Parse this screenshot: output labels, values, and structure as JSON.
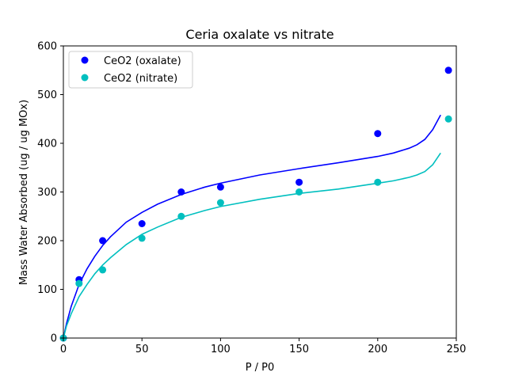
{
  "chart_data": {
    "type": "scatter",
    "title": "Ceria oxalate vs nitrate",
    "xlabel": "P / P0",
    "ylabel": "Mass Water Absorbed (ug / ug MOx)",
    "xlim": [
      0,
      250
    ],
    "ylim": [
      0,
      600
    ],
    "xticks": [
      "0",
      "50",
      "100",
      "150",
      "200",
      "250"
    ],
    "yticks": [
      "0",
      "100",
      "200",
      "300",
      "400",
      "500",
      "600"
    ],
    "grid": false,
    "legend_position": "top-left",
    "series": [
      {
        "name": "CeO2 (oxalate)",
        "color": "#0000ff",
        "marker": "circle",
        "points": [
          [
            0,
            0
          ],
          [
            10,
            120
          ],
          [
            25,
            200
          ],
          [
            50,
            235
          ],
          [
            75,
            300
          ],
          [
            100,
            310
          ],
          [
            150,
            320
          ],
          [
            200,
            420
          ],
          [
            245,
            550
          ]
        ]
      },
      {
        "name": "CeO2 (nitrate)",
        "color": "#00bfbf",
        "marker": "circle",
        "points": [
          [
            0,
            0
          ],
          [
            10,
            112
          ],
          [
            25,
            140
          ],
          [
            50,
            205
          ],
          [
            75,
            250
          ],
          [
            100,
            278
          ],
          [
            150,
            300
          ],
          [
            200,
            320
          ],
          [
            245,
            450
          ]
        ]
      }
    ],
    "fit_lines": [
      {
        "color": "#0000ff",
        "points": [
          [
            0,
            0
          ],
          [
            2,
            30
          ],
          [
            5,
            65
          ],
          [
            10,
            110
          ],
          [
            15,
            142
          ],
          [
            20,
            168
          ],
          [
            25,
            190
          ],
          [
            30,
            208
          ],
          [
            40,
            238
          ],
          [
            50,
            258
          ],
          [
            60,
            275
          ],
          [
            75,
            295
          ],
          [
            90,
            310
          ],
          [
            100,
            318
          ],
          [
            125,
            335
          ],
          [
            150,
            348
          ],
          [
            175,
            360
          ],
          [
            200,
            373
          ],
          [
            210,
            380
          ],
          [
            220,
            390
          ],
          [
            225,
            397
          ],
          [
            230,
            408
          ],
          [
            235,
            428
          ],
          [
            240,
            458
          ]
        ]
      },
      {
        "color": "#00bfbf",
        "points": [
          [
            0,
            0
          ],
          [
            2,
            25
          ],
          [
            5,
            50
          ],
          [
            10,
            85
          ],
          [
            15,
            110
          ],
          [
            20,
            132
          ],
          [
            25,
            150
          ],
          [
            30,
            165
          ],
          [
            40,
            192
          ],
          [
            50,
            213
          ],
          [
            60,
            228
          ],
          [
            75,
            248
          ],
          [
            90,
            262
          ],
          [
            100,
            270
          ],
          [
            125,
            285
          ],
          [
            150,
            297
          ],
          [
            175,
            306
          ],
          [
            200,
            318
          ],
          [
            210,
            323
          ],
          [
            220,
            330
          ],
          [
            225,
            335
          ],
          [
            230,
            342
          ],
          [
            235,
            356
          ],
          [
            240,
            380
          ]
        ]
      }
    ]
  }
}
